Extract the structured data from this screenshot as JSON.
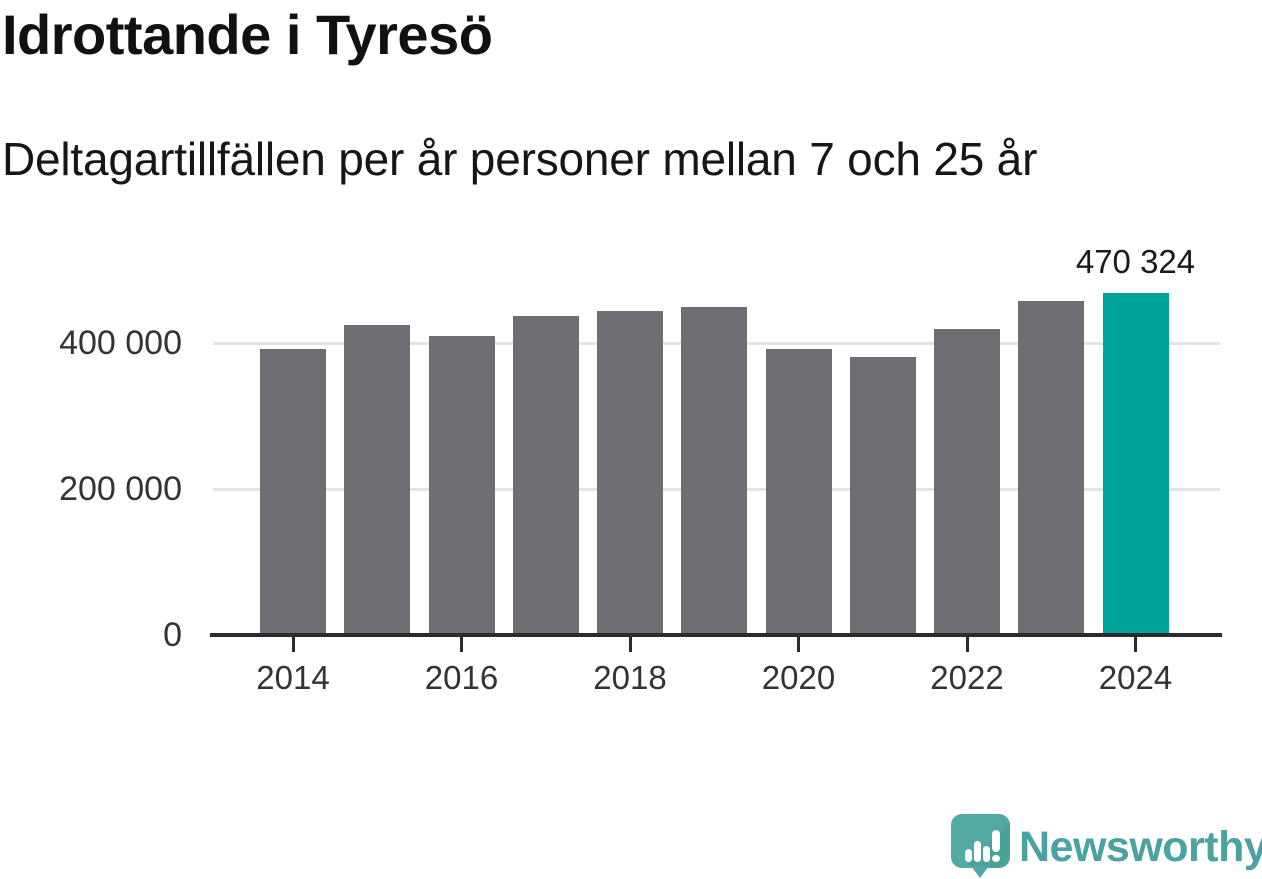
{
  "header": {
    "title": "Idrottande i Tyresö",
    "subtitle": "Deltagartillfällen per år personer mellan 7 och 25 år"
  },
  "chart_data": {
    "type": "bar",
    "title": "Idrottande i Tyresö",
    "subtitle": "Deltagartillfällen per år personer mellan 7 och 25 år",
    "categories": [
      "2014",
      "2015",
      "2016",
      "2017",
      "2018",
      "2019",
      "2020",
      "2021",
      "2022",
      "2023",
      "2024"
    ],
    "values": [
      393000,
      426000,
      412000,
      439000,
      446000,
      451000,
      394000,
      382000,
      421000,
      459000,
      470324
    ],
    "highlight_index": 10,
    "value_label": "470 324",
    "x_tick_labels": [
      "2014",
      "2016",
      "2018",
      "2020",
      "2022",
      "2024"
    ],
    "y_ticks": [
      {
        "value": 0,
        "label": "0"
      },
      {
        "value": 200000,
        "label": "200 000"
      },
      {
        "value": 400000,
        "label": "400 000"
      }
    ],
    "xlabel": "",
    "ylabel": "",
    "ylim": [
      0,
      480000
    ],
    "grid": "horizontal",
    "legend": "none",
    "colors": {
      "bar": "#6e6d73",
      "highlight": "#00a49a",
      "axis": "#2b2b2b",
      "gridline": "#e3e3e3",
      "tick_text": "#333333"
    }
  },
  "footer": {
    "brand": "Newsworthy",
    "logo_icon": "newsworthy-speech-bubble-bar-chart-icon",
    "brand_color": "#4aa2a1"
  }
}
